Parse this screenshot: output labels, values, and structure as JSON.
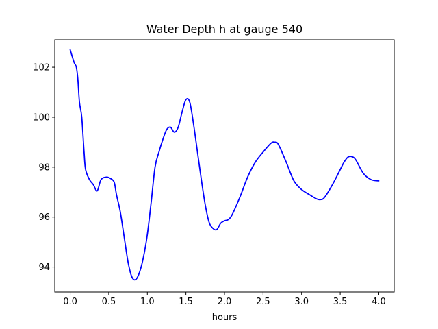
{
  "chart_data": {
    "type": "line",
    "title": "Water Depth h at gauge 540",
    "xlabel": "hours",
    "ylabel": "",
    "xlim": [
      -0.2,
      4.2
    ],
    "ylim": [
      93.0,
      103.1
    ],
    "xticks": [
      0.0,
      0.5,
      1.0,
      1.5,
      2.0,
      2.5,
      3.0,
      3.5,
      4.0
    ],
    "xtick_labels": [
      "0.0",
      "0.5",
      "1.0",
      "1.5",
      "2.0",
      "2.5",
      "3.0",
      "3.5",
      "4.0"
    ],
    "yticks": [
      94,
      96,
      98,
      100,
      102
    ],
    "ytick_labels": [
      "94",
      "96",
      "98",
      "100",
      "102"
    ],
    "grid": false,
    "series": [
      {
        "color": "#0000ff",
        "x": [
          0.0,
          0.05,
          0.08,
          0.1,
          0.12,
          0.15,
          0.18,
          0.2,
          0.25,
          0.3,
          0.35,
          0.4,
          0.47,
          0.52,
          0.57,
          0.6,
          0.65,
          0.7,
          0.75,
          0.8,
          0.85,
          0.9,
          0.95,
          1.0,
          1.05,
          1.1,
          1.15,
          1.2,
          1.25,
          1.3,
          1.35,
          1.4,
          1.45,
          1.5,
          1.55,
          1.6,
          1.65,
          1.7,
          1.75,
          1.8,
          1.85,
          1.9,
          1.95,
          2.0,
          2.05,
          2.1,
          2.2,
          2.3,
          2.4,
          2.5,
          2.6,
          2.65,
          2.7,
          2.8,
          2.9,
          3.0,
          3.1,
          3.2,
          3.25,
          3.3,
          3.4,
          3.5,
          3.55,
          3.6,
          3.65,
          3.7,
          3.8,
          3.9,
          4.0
        ],
        "y": [
          102.7,
          102.2,
          102.0,
          101.5,
          100.6,
          100.0,
          98.6,
          97.9,
          97.5,
          97.3,
          97.05,
          97.5,
          97.6,
          97.55,
          97.4,
          96.9,
          96.2,
          95.2,
          94.2,
          93.6,
          93.5,
          93.8,
          94.4,
          95.3,
          96.6,
          98.0,
          98.6,
          99.1,
          99.5,
          99.6,
          99.4,
          99.6,
          100.2,
          100.7,
          100.6,
          99.7,
          98.6,
          97.5,
          96.5,
          95.8,
          95.55,
          95.5,
          95.75,
          95.85,
          95.9,
          96.1,
          96.8,
          97.6,
          98.2,
          98.6,
          98.95,
          99.0,
          98.9,
          98.2,
          97.45,
          97.1,
          96.9,
          96.72,
          96.7,
          96.8,
          97.3,
          97.9,
          98.2,
          98.4,
          98.42,
          98.3,
          97.75,
          97.5,
          97.45
        ]
      }
    ]
  }
}
